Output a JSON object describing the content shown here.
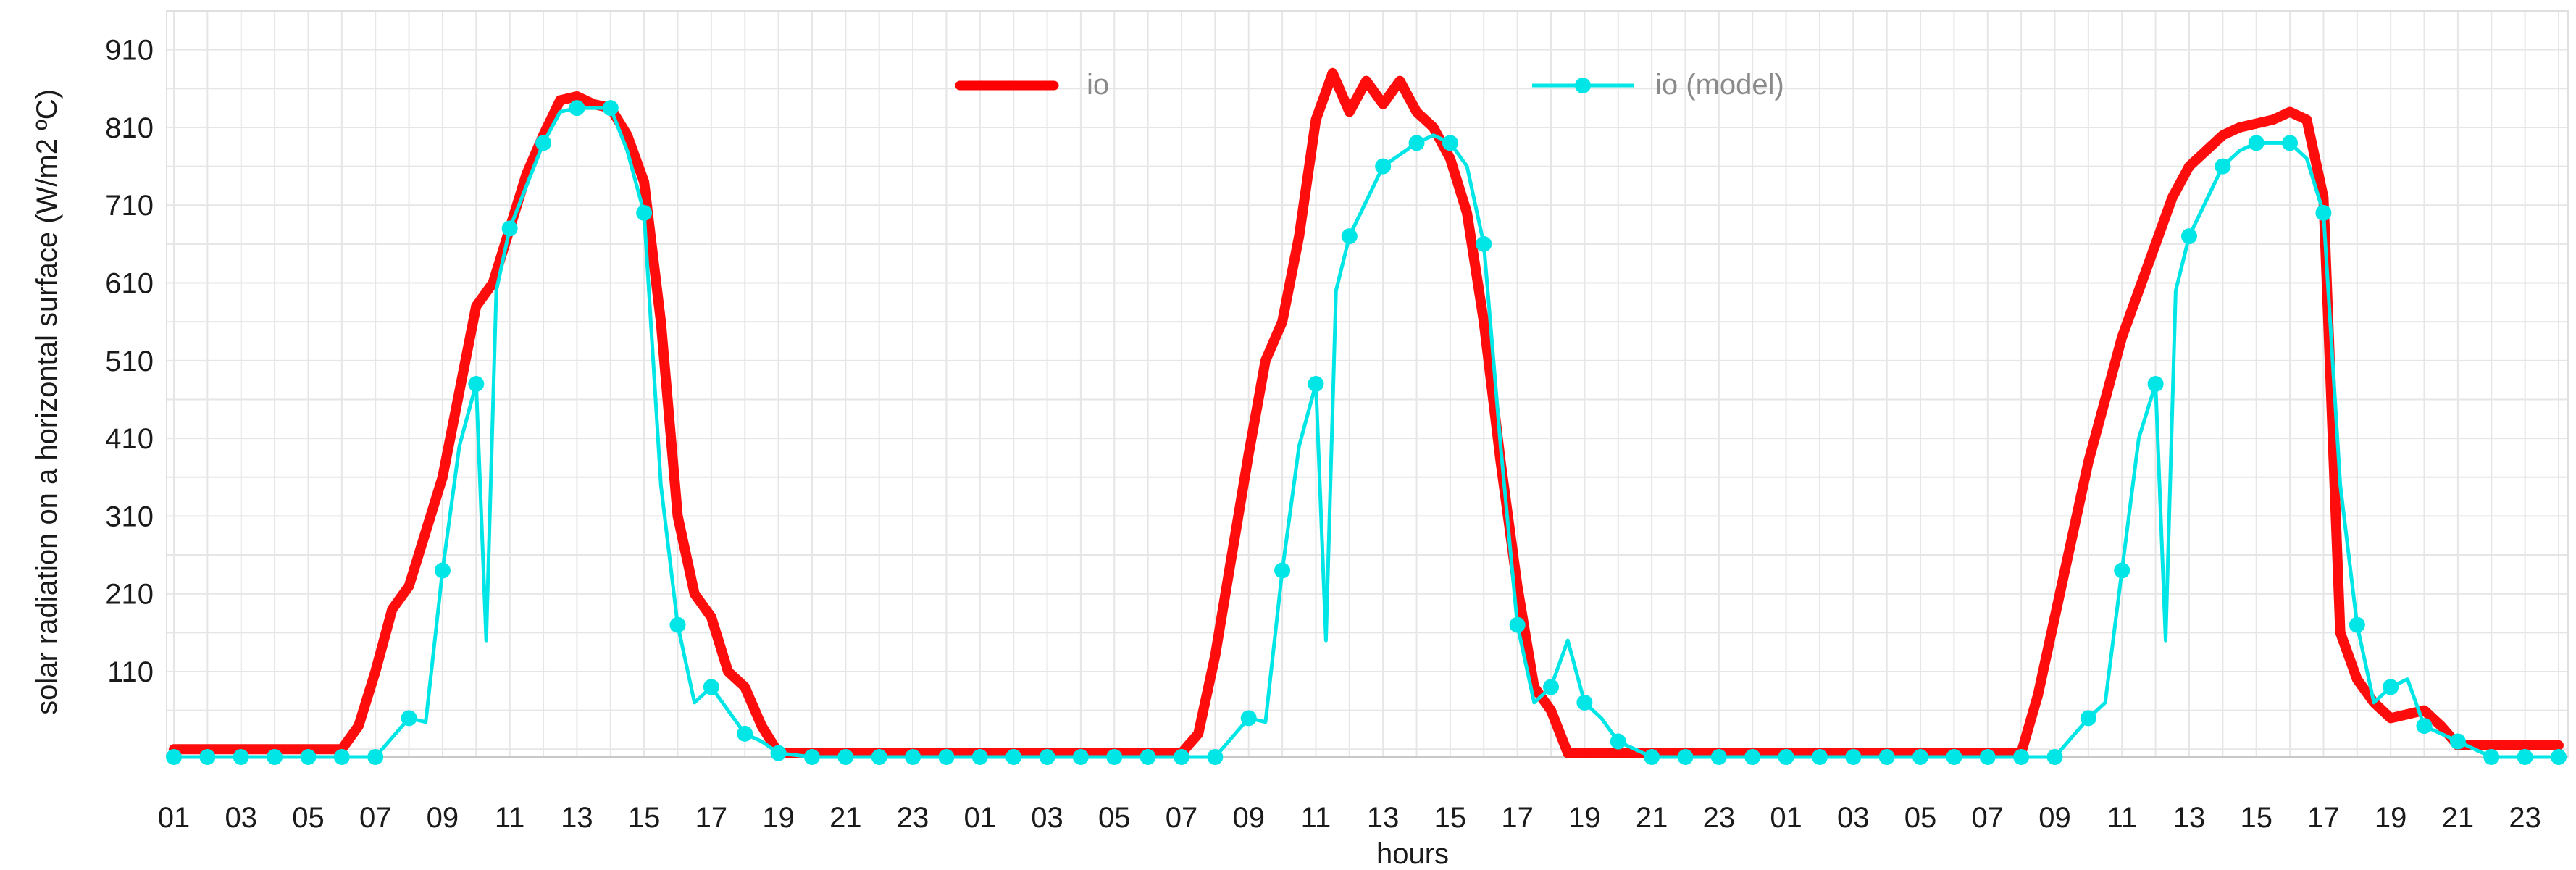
{
  "chart_data": {
    "type": "line",
    "title": "",
    "xlabel": "hours",
    "ylabel": "solar radiation on a horizontal surface (W/m2 ºC)",
    "ylim": [
      0,
      960
    ],
    "yticks": [
      110,
      210,
      310,
      410,
      510,
      610,
      710,
      810,
      910
    ],
    "xlim": [
      1,
      72
    ],
    "xtick_positions": [
      1,
      3,
      5,
      7,
      9,
      11,
      13,
      15,
      17,
      19,
      21,
      23,
      25,
      27,
      29,
      31,
      33,
      35,
      37,
      39,
      41,
      43,
      45,
      47,
      49,
      51,
      53,
      55,
      57,
      59,
      61,
      63,
      65,
      67,
      69,
      71
    ],
    "xtick_labels": [
      "01",
      "03",
      "05",
      "07",
      "09",
      "11",
      "13",
      "15",
      "17",
      "19",
      "21",
      "23",
      "01",
      "03",
      "05",
      "07",
      "09",
      "11",
      "13",
      "15",
      "17",
      "19",
      "21",
      "23",
      "01",
      "03",
      "05",
      "07",
      "09",
      "11",
      "13",
      "15",
      "17",
      "19",
      "21",
      "23"
    ],
    "grid": true,
    "legend": "top-center",
    "series": [
      {
        "name": "io",
        "color": "#ff0000",
        "points": [
          [
            1,
            10
          ],
          [
            2,
            10
          ],
          [
            3,
            10
          ],
          [
            4,
            10
          ],
          [
            5,
            10
          ],
          [
            6,
            10
          ],
          [
            6.5,
            40
          ],
          [
            7,
            110
          ],
          [
            7.5,
            190
          ],
          [
            8,
            220
          ],
          [
            8.5,
            290
          ],
          [
            9,
            360
          ],
          [
            9.5,
            470
          ],
          [
            10,
            580
          ],
          [
            10.5,
            610
          ],
          [
            11,
            680
          ],
          [
            11.5,
            750
          ],
          [
            12,
            800
          ],
          [
            12.5,
            845
          ],
          [
            13,
            850
          ],
          [
            13.5,
            840
          ],
          [
            14,
            835
          ],
          [
            14.5,
            800
          ],
          [
            15,
            740
          ],
          [
            15.5,
            560
          ],
          [
            16,
            310
          ],
          [
            16.5,
            210
          ],
          [
            17,
            180
          ],
          [
            17.5,
            110
          ],
          [
            18,
            90
          ],
          [
            18.5,
            40
          ],
          [
            19,
            5
          ],
          [
            20,
            5
          ],
          [
            21,
            5
          ],
          [
            22,
            5
          ],
          [
            23,
            5
          ],
          [
            24,
            5
          ],
          [
            25,
            5
          ],
          [
            26,
            5
          ],
          [
            27,
            5
          ],
          [
            28,
            5
          ],
          [
            29,
            5
          ],
          [
            30,
            5
          ],
          [
            31,
            5
          ],
          [
            31.5,
            30
          ],
          [
            32,
            130
          ],
          [
            32.5,
            260
          ],
          [
            33,
            390
          ],
          [
            33.5,
            510
          ],
          [
            34,
            560
          ],
          [
            34.5,
            670
          ],
          [
            35,
            820
          ],
          [
            35.5,
            880
          ],
          [
            36,
            830
          ],
          [
            36.5,
            870
          ],
          [
            37,
            840
          ],
          [
            37.5,
            870
          ],
          [
            38,
            830
          ],
          [
            38.5,
            810
          ],
          [
            39,
            770
          ],
          [
            39.5,
            700
          ],
          [
            40,
            560
          ],
          [
            40.5,
            380
          ],
          [
            41,
            220
          ],
          [
            41.5,
            90
          ],
          [
            42,
            60
          ],
          [
            42.5,
            5
          ],
          [
            43,
            5
          ],
          [
            44,
            5
          ],
          [
            45,
            5
          ],
          [
            46,
            5
          ],
          [
            47,
            5
          ],
          [
            48,
            5
          ],
          [
            49,
            5
          ],
          [
            50,
            5
          ],
          [
            51,
            5
          ],
          [
            52,
            5
          ],
          [
            53,
            5
          ],
          [
            54,
            5
          ],
          [
            55,
            5
          ],
          [
            56,
            5
          ],
          [
            56.5,
            80
          ],
          [
            57,
            180
          ],
          [
            57.5,
            280
          ],
          [
            58,
            380
          ],
          [
            58.5,
            460
          ],
          [
            59,
            540
          ],
          [
            59.5,
            600
          ],
          [
            60,
            660
          ],
          [
            60.5,
            720
          ],
          [
            61,
            760
          ],
          [
            61.5,
            780
          ],
          [
            62,
            800
          ],
          [
            62.5,
            810
          ],
          [
            63,
            815
          ],
          [
            63.5,
            820
          ],
          [
            64,
            830
          ],
          [
            64.5,
            820
          ],
          [
            65,
            720
          ],
          [
            65.5,
            160
          ],
          [
            66,
            100
          ],
          [
            66.5,
            70
          ],
          [
            67,
            50
          ],
          [
            67.5,
            55
          ],
          [
            68,
            60
          ],
          [
            68.5,
            40
          ],
          [
            69,
            15
          ],
          [
            70,
            15
          ],
          [
            71,
            15
          ],
          [
            72,
            15
          ]
        ]
      },
      {
        "name": "io (model)",
        "color": "#00e5e5",
        "points": [
          [
            1,
            0
          ],
          [
            2,
            0
          ],
          [
            3,
            0
          ],
          [
            4,
            0
          ],
          [
            5,
            0
          ],
          [
            6,
            0
          ],
          [
            7,
            0
          ],
          [
            8,
            50
          ],
          [
            8.5,
            45
          ],
          [
            9,
            240
          ],
          [
            9.5,
            400
          ],
          [
            10,
            480
          ],
          [
            10.3,
            150
          ],
          [
            10.6,
            600
          ],
          [
            11,
            680
          ],
          [
            12,
            790
          ],
          [
            12.5,
            830
          ],
          [
            13,
            835
          ],
          [
            14,
            835
          ],
          [
            14.5,
            780
          ],
          [
            15,
            700
          ],
          [
            15.5,
            350
          ],
          [
            16,
            170
          ],
          [
            16.5,
            70
          ],
          [
            17,
            90
          ],
          [
            17.5,
            60
          ],
          [
            18,
            30
          ],
          [
            18.5,
            20
          ],
          [
            19,
            5
          ],
          [
            20,
            0
          ],
          [
            21,
            0
          ],
          [
            22,
            0
          ],
          [
            23,
            0
          ],
          [
            24,
            0
          ],
          [
            25,
            0
          ],
          [
            26,
            0
          ],
          [
            27,
            0
          ],
          [
            28,
            0
          ],
          [
            29,
            0
          ],
          [
            30,
            0
          ],
          [
            31,
            0
          ],
          [
            32,
            0
          ],
          [
            33,
            50
          ],
          [
            33.5,
            45
          ],
          [
            34,
            240
          ],
          [
            34.5,
            400
          ],
          [
            35,
            480
          ],
          [
            35.3,
            150
          ],
          [
            35.6,
            600
          ],
          [
            36,
            670
          ],
          [
            37,
            760
          ],
          [
            38,
            790
          ],
          [
            38.5,
            800
          ],
          [
            39,
            790
          ],
          [
            39.5,
            760
          ],
          [
            40,
            660
          ],
          [
            40.5,
            400
          ],
          [
            41,
            170
          ],
          [
            41.5,
            70
          ],
          [
            42,
            90
          ],
          [
            42.5,
            150
          ],
          [
            43,
            70
          ],
          [
            43.5,
            50
          ],
          [
            44,
            20
          ],
          [
            45,
            0
          ],
          [
            46,
            0
          ],
          [
            47,
            0
          ],
          [
            48,
            0
          ],
          [
            49,
            0
          ],
          [
            50,
            0
          ],
          [
            51,
            0
          ],
          [
            52,
            0
          ],
          [
            53,
            0
          ],
          [
            54,
            0
          ],
          [
            55,
            0
          ],
          [
            56,
            0
          ],
          [
            57,
            0
          ],
          [
            58,
            50
          ],
          [
            58.5,
            70
          ],
          [
            59,
            240
          ],
          [
            59.5,
            410
          ],
          [
            60,
            480
          ],
          [
            60.3,
            150
          ],
          [
            60.6,
            600
          ],
          [
            61,
            670
          ],
          [
            62,
            760
          ],
          [
            62.5,
            780
          ],
          [
            63,
            790
          ],
          [
            64,
            790
          ],
          [
            64.5,
            770
          ],
          [
            65,
            700
          ],
          [
            65.5,
            350
          ],
          [
            66,
            170
          ],
          [
            66.5,
            70
          ],
          [
            67,
            90
          ],
          [
            67.5,
            100
          ],
          [
            68,
            40
          ],
          [
            68.5,
            30
          ],
          [
            69,
            20
          ],
          [
            69.5,
            10
          ],
          [
            70,
            0
          ],
          [
            71,
            0
          ],
          [
            72,
            0
          ]
        ],
        "markers_at": [
          1,
          2,
          3,
          4,
          5,
          6,
          7,
          8,
          9,
          10,
          11,
          12,
          13,
          14,
          15,
          16,
          17,
          18,
          19,
          20,
          21,
          22,
          23,
          24,
          25,
          26,
          27,
          28,
          29,
          30,
          31,
          32,
          33,
          34,
          35,
          36,
          37,
          38,
          39,
          40,
          41,
          42,
          43,
          44,
          45,
          46,
          47,
          48,
          49,
          50,
          51,
          52,
          53,
          54,
          55,
          56,
          57,
          58,
          59,
          60,
          61,
          62,
          63,
          64,
          65,
          66,
          67,
          68,
          69,
          70,
          71,
          72
        ]
      }
    ]
  }
}
